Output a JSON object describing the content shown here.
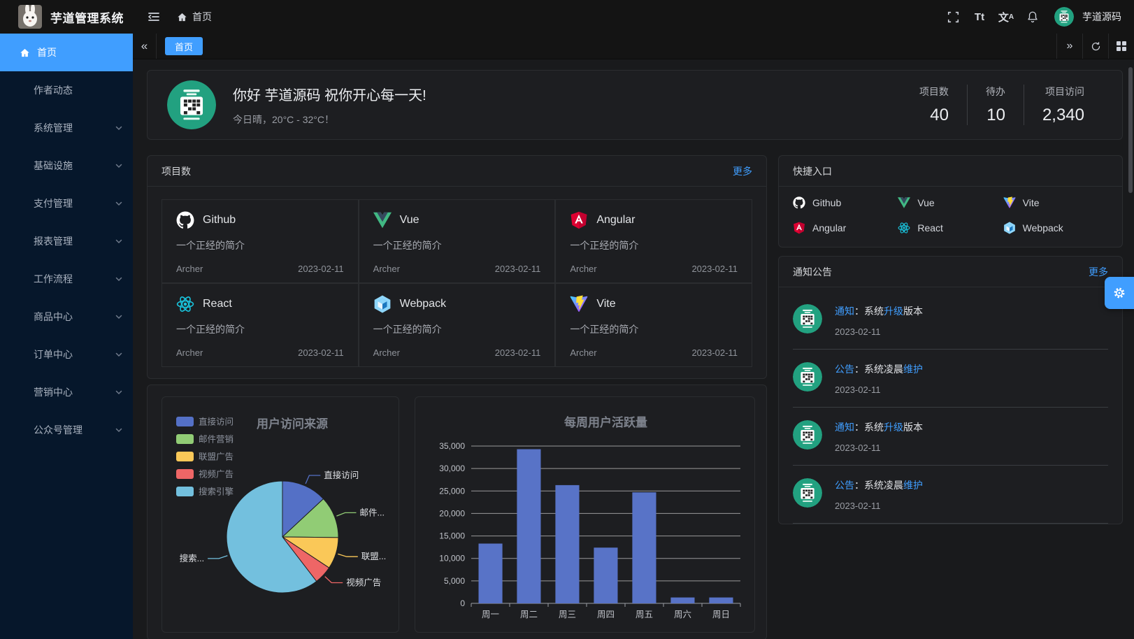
{
  "app": {
    "title": "芋道管理系统",
    "breadcrumb": "首页",
    "username": "芋道源码"
  },
  "header": {
    "font_icon_text": "Tt",
    "locale_icon_text": "文"
  },
  "sidebar": {
    "items": [
      {
        "id": "home",
        "label": "首页",
        "active": true,
        "has_children": false,
        "icon": "home"
      },
      {
        "id": "author-news",
        "label": "作者动态",
        "active": false,
        "has_children": false
      },
      {
        "id": "system",
        "label": "系统管理",
        "active": false,
        "has_children": true
      },
      {
        "id": "infra",
        "label": "基础设施",
        "active": false,
        "has_children": true
      },
      {
        "id": "payment",
        "label": "支付管理",
        "active": false,
        "has_children": true
      },
      {
        "id": "report",
        "label": "报表管理",
        "active": false,
        "has_children": true
      },
      {
        "id": "workflow",
        "label": "工作流程",
        "active": false,
        "has_children": true
      },
      {
        "id": "product",
        "label": "商品中心",
        "active": false,
        "has_children": true
      },
      {
        "id": "order",
        "label": "订单中心",
        "active": false,
        "has_children": true
      },
      {
        "id": "marketing",
        "label": "营销中心",
        "active": false,
        "has_children": true
      },
      {
        "id": "mp",
        "label": "公众号管理",
        "active": false,
        "has_children": true
      }
    ]
  },
  "tabs": {
    "active_label": "首页"
  },
  "welcome": {
    "greeting": "你好 芋道源码 祝你开心每一天!",
    "weather": "今日晴，20°C - 32°C！",
    "stats": [
      {
        "label": "项目数",
        "value": "40"
      },
      {
        "label": "待办",
        "value": "10"
      },
      {
        "label": "项目访问",
        "value": "2,340"
      }
    ]
  },
  "projects": {
    "title": "项目数",
    "more": "更多",
    "items": [
      {
        "name": "Github",
        "icon": "github",
        "desc": "一个正经的简介",
        "author": "Archer",
        "date": "2023-02-11"
      },
      {
        "name": "Vue",
        "icon": "vue",
        "desc": "一个正经的简介",
        "author": "Archer",
        "date": "2023-02-11"
      },
      {
        "name": "Angular",
        "icon": "angular",
        "desc": "一个正经的简介",
        "author": "Archer",
        "date": "2023-02-11"
      },
      {
        "name": "React",
        "icon": "react",
        "desc": "一个正经的简介",
        "author": "Archer",
        "date": "2023-02-11"
      },
      {
        "name": "Webpack",
        "icon": "webpack",
        "desc": "一个正经的简介",
        "author": "Archer",
        "date": "2023-02-11"
      },
      {
        "name": "Vite",
        "icon": "vite",
        "desc": "一个正经的简介",
        "author": "Archer",
        "date": "2023-02-11"
      }
    ]
  },
  "shortcuts": {
    "title": "快捷入口",
    "items": [
      {
        "name": "Github",
        "icon": "github"
      },
      {
        "name": "Vue",
        "icon": "vue"
      },
      {
        "name": "Vite",
        "icon": "vite"
      },
      {
        "name": "Angular",
        "icon": "angular"
      },
      {
        "name": "React",
        "icon": "react"
      },
      {
        "name": "Webpack",
        "icon": "webpack"
      }
    ]
  },
  "notices": {
    "title": "通知公告",
    "more": "更多",
    "items": [
      {
        "segments": [
          {
            "text": "通知",
            "hl": true
          },
          {
            "text": "：系统",
            "hl": false
          },
          {
            "text": "升级",
            "hl": true
          },
          {
            "text": "版本",
            "hl": false
          }
        ],
        "date": "2023-02-11"
      },
      {
        "segments": [
          {
            "text": "公告",
            "hl": true
          },
          {
            "text": "：系统凌晨",
            "hl": false
          },
          {
            "text": "维护",
            "hl": true
          }
        ],
        "date": "2023-02-11"
      },
      {
        "segments": [
          {
            "text": "通知",
            "hl": true
          },
          {
            "text": "：系统",
            "hl": false
          },
          {
            "text": "升级",
            "hl": true
          },
          {
            "text": "版本",
            "hl": false
          }
        ],
        "date": "2023-02-11"
      },
      {
        "segments": [
          {
            "text": "公告",
            "hl": true
          },
          {
            "text": "：系统凌晨",
            "hl": false
          },
          {
            "text": "维护",
            "hl": true
          }
        ],
        "date": "2023-02-11"
      }
    ]
  },
  "chart_data": [
    {
      "type": "pie",
      "title": "用户访问来源",
      "legend_position": "top-left",
      "series": [
        {
          "name": "直接访问",
          "value": 335,
          "color": "#5470c6",
          "display": "直接访问"
        },
        {
          "name": "邮件营销",
          "value": 310,
          "color": "#91cc75",
          "display": "邮件..."
        },
        {
          "name": "联盟广告",
          "value": 234,
          "color": "#fac858",
          "display": "联盟..."
        },
        {
          "name": "视频广告",
          "value": 135,
          "color": "#ee6666",
          "display": "视频广告"
        },
        {
          "name": "搜索引擎",
          "value": 1548,
          "color": "#73c0de",
          "display": "搜索..."
        }
      ]
    },
    {
      "type": "bar",
      "title": "每周用户活跃量",
      "categories": [
        "周一",
        "周二",
        "周三",
        "周四",
        "周五",
        "周六",
        "周日"
      ],
      "values": [
        13300,
        34300,
        26300,
        12400,
        24700,
        1300,
        1300
      ],
      "ylim": [
        0,
        35000
      ],
      "ytick_step": 5000,
      "bar_color": "#5873c7",
      "grid": true,
      "legend_position": "none"
    }
  ],
  "colors": {
    "accent": "#409eff",
    "sidebar_bg": "#06172b",
    "card_bg": "#1d1e21",
    "avatar_green": "#22a180"
  }
}
